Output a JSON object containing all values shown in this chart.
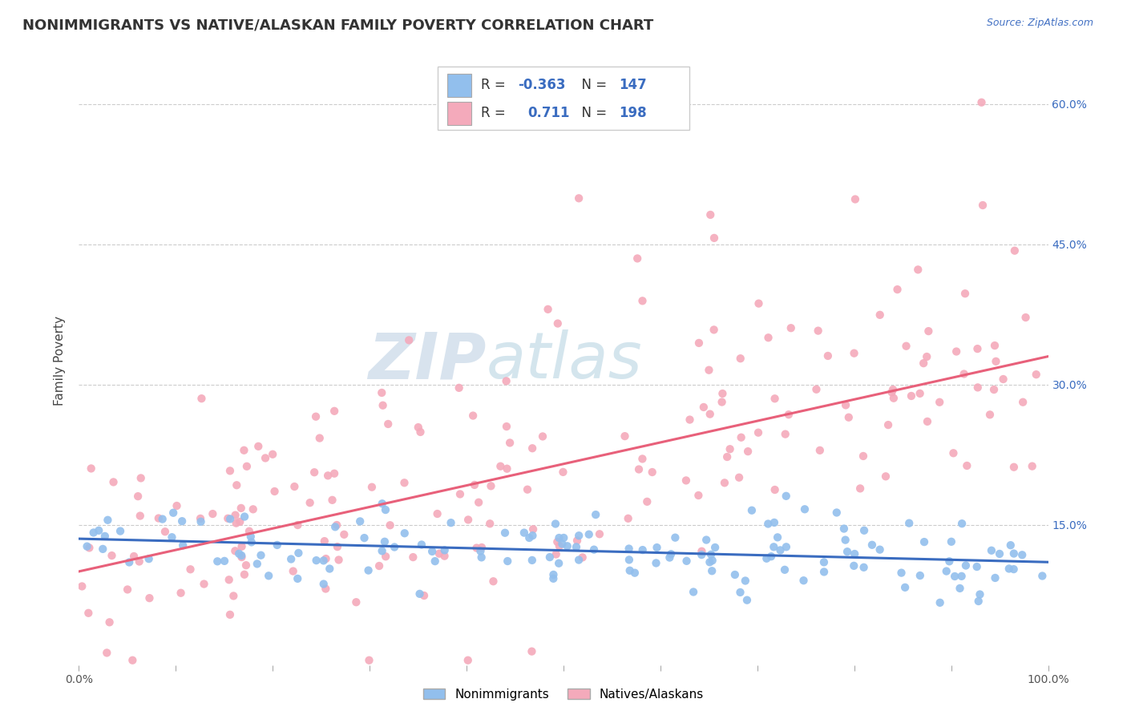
{
  "title": "NONIMMIGRANTS VS NATIVE/ALASKAN FAMILY POVERTY CORRELATION CHART",
  "source_text": "Source: ZipAtlas.com",
  "ylabel": "Family Poverty",
  "xlim": [
    0,
    1
  ],
  "ylim": [
    0,
    0.65
  ],
  "xtick_positions": [
    0.0,
    0.1,
    0.2,
    0.3,
    0.4,
    0.5,
    0.6,
    0.7,
    0.8,
    0.9,
    1.0
  ],
  "xtick_labels": [
    "0.0%",
    "",
    "",
    "",
    "",
    "",
    "",
    "",
    "",
    "",
    "100.0%"
  ],
  "ytick_positions": [
    0.15,
    0.3,
    0.45,
    0.6
  ],
  "ytick_labels": [
    "15.0%",
    "30.0%",
    "45.0%",
    "60.0%"
  ],
  "blue_color": "#92BFED",
  "pink_color": "#F4AABB",
  "blue_line_color": "#3A6CC0",
  "pink_line_color": "#E8607A",
  "legend_label_blue": "Nonimmigrants",
  "legend_label_pink": "Natives/Alaskans",
  "background_color": "#FFFFFF",
  "watermark_color": "#C8D8E8",
  "grid_color": "#CCCCCC",
  "title_fontsize": 13,
  "axis_label_fontsize": 11,
  "tick_fontsize": 10,
  "blue_intercept": 0.135,
  "blue_slope": -0.025,
  "pink_intercept": 0.1,
  "pink_slope": 0.23,
  "blue_N": 147,
  "pink_N": 198
}
